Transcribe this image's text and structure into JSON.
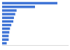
{
  "chart_data": {
    "type": "bar",
    "orientation": "horizontal",
    "categories": [
      null,
      null,
      null,
      null,
      null,
      null,
      null,
      null,
      null,
      null,
      null,
      null
    ],
    "values": [
      84,
      50,
      22,
      20,
      18,
      17,
      14,
      12,
      11,
      10,
      10,
      7
    ],
    "color": "#3f74d6",
    "xlim": [
      0,
      100
    ],
    "grid": false,
    "tick_labels": false
  }
}
